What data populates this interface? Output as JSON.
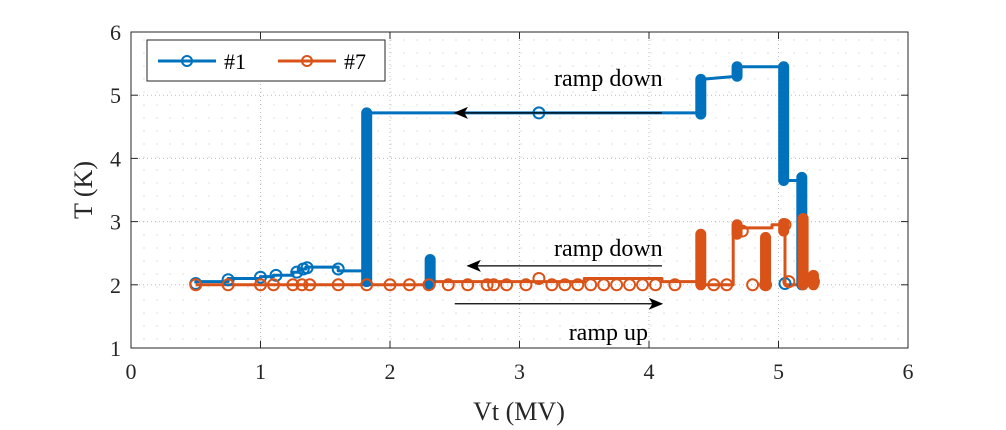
{
  "chart_data": {
    "type": "line",
    "title": "",
    "xlabel": "Vt (MV)",
    "ylabel": "T (K)",
    "xlim": [
      0,
      6
    ],
    "ylim": [
      1,
      6
    ],
    "xticks": [
      "0",
      "1",
      "2",
      "3",
      "4",
      "5",
      "6"
    ],
    "yticks": [
      "1",
      "2",
      "3",
      "4",
      "5",
      "6"
    ],
    "grid": "minor-dotted",
    "legend_position": "top-left",
    "series": [
      {
        "name": "#1",
        "color": "#0072BD",
        "x": [
          0.5,
          0.5,
          0.75,
          0.75,
          1.0,
          1.0,
          1.1,
          1.1,
          1.25,
          1.25,
          1.3,
          1.3,
          1.35,
          1.35,
          1.6,
          1.6,
          1.82,
          1.82,
          1.82,
          4.4,
          4.4,
          4.4,
          4.68,
          4.68,
          4.68,
          5.03,
          5.03,
          5.03,
          5.03,
          5.18,
          5.18,
          5.18
        ],
        "y": [
          2.02,
          2.05,
          2.05,
          2.1,
          2.1,
          2.13,
          2.13,
          2.15,
          2.15,
          2.2,
          2.2,
          2.25,
          2.25,
          2.28,
          2.28,
          2.22,
          2.22,
          4.7,
          4.72,
          4.72,
          5.2,
          5.25,
          5.3,
          5.42,
          5.45,
          5.45,
          5.4,
          5.1,
          3.65,
          3.65,
          3.7,
          2.05
        ],
        "markers": [
          {
            "x": 0.5,
            "y": 2.02
          },
          {
            "x": 0.75,
            "y": 2.08
          },
          {
            "x": 1.0,
            "y": 2.12
          },
          {
            "x": 1.12,
            "y": 2.15
          },
          {
            "x": 1.28,
            "y": 2.2
          },
          {
            "x": 1.33,
            "y": 2.25
          },
          {
            "x": 1.36,
            "y": 2.27
          },
          {
            "x": 1.6,
            "y": 2.25
          },
          {
            "x": 3.15,
            "y": 4.72
          },
          {
            "x": 5.05,
            "y": 2.02
          }
        ]
      },
      {
        "name": "#7",
        "color": "#D95319",
        "x": [
          0.5,
          2.3,
          2.3,
          3.5,
          3.5,
          4.1,
          4.1,
          4.4,
          4.4,
          4.4,
          4.65,
          4.65,
          4.95,
          4.95,
          5.05,
          5.05,
          5.18,
          5.18,
          5.18,
          5.25,
          5.27
        ],
        "y": [
          2.0,
          2.0,
          2.05,
          2.05,
          2.1,
          2.1,
          2.05,
          2.05,
          2.75,
          2.0,
          2.0,
          2.9,
          2.9,
          2.95,
          2.95,
          2.0,
          2.0,
          3.0,
          2.0,
          2.0,
          2.1
        ],
        "markers": [
          {
            "x": 0.5,
            "y": 2.0
          },
          {
            "x": 0.75,
            "y": 2.0
          },
          {
            "x": 1.0,
            "y": 2.0
          },
          {
            "x": 1.1,
            "y": 2.0
          },
          {
            "x": 1.25,
            "y": 2.0
          },
          {
            "x": 1.32,
            "y": 2.0
          },
          {
            "x": 1.38,
            "y": 2.0
          },
          {
            "x": 1.6,
            "y": 2.0
          },
          {
            "x": 1.82,
            "y": 2.0
          },
          {
            "x": 2.0,
            "y": 2.0
          },
          {
            "x": 2.15,
            "y": 2.0
          },
          {
            "x": 2.3,
            "y": 2.0
          },
          {
            "x": 2.45,
            "y": 2.0
          },
          {
            "x": 2.6,
            "y": 2.0
          },
          {
            "x": 2.75,
            "y": 2.0
          },
          {
            "x": 2.8,
            "y": 2.0
          },
          {
            "x": 2.9,
            "y": 2.0
          },
          {
            "x": 3.05,
            "y": 2.0
          },
          {
            "x": 3.15,
            "y": 2.1
          },
          {
            "x": 3.25,
            "y": 2.0
          },
          {
            "x": 3.35,
            "y": 2.0
          },
          {
            "x": 3.45,
            "y": 2.0
          },
          {
            "x": 3.55,
            "y": 2.0
          },
          {
            "x": 3.65,
            "y": 2.0
          },
          {
            "x": 3.75,
            "y": 2.0
          },
          {
            "x": 3.85,
            "y": 2.0
          },
          {
            "x": 3.95,
            "y": 2.0
          },
          {
            "x": 4.05,
            "y": 2.0
          },
          {
            "x": 4.2,
            "y": 2.0
          },
          {
            "x": 4.5,
            "y": 2.0
          },
          {
            "x": 4.6,
            "y": 2.0
          },
          {
            "x": 4.72,
            "y": 2.85
          },
          {
            "x": 4.8,
            "y": 2.0
          },
          {
            "x": 4.9,
            "y": 2.0
          },
          {
            "x": 5.05,
            "y": 2.95
          },
          {
            "x": 5.08,
            "y": 2.05
          },
          {
            "x": 5.27,
            "y": 2.05
          }
        ]
      }
    ],
    "thick_segments": [
      {
        "series": 0,
        "x": 1.82,
        "y0": 2.05,
        "y1": 4.72
      },
      {
        "series": 0,
        "x": 2.31,
        "y0": 2.0,
        "y1": 2.4
      },
      {
        "series": 0,
        "x": 4.4,
        "y0": 4.7,
        "y1": 5.25
      },
      {
        "series": 0,
        "x": 4.68,
        "y0": 5.3,
        "y1": 5.45
      },
      {
        "series": 0,
        "x": 5.04,
        "y0": 3.65,
        "y1": 5.45
      },
      {
        "series": 0,
        "x": 5.18,
        "y0": 2.0,
        "y1": 3.7
      },
      {
        "series": 1,
        "x": 4.4,
        "y0": 2.0,
        "y1": 2.8
      },
      {
        "series": 1,
        "x": 4.68,
        "y0": 2.8,
        "y1": 2.95
      },
      {
        "series": 1,
        "x": 4.9,
        "y0": 2.0,
        "y1": 2.75
      },
      {
        "series": 1,
        "x": 5.04,
        "y0": 2.85,
        "y1": 2.97
      },
      {
        "series": 1,
        "x": 5.19,
        "y0": 2.0,
        "y1": 3.05
      },
      {
        "series": 1,
        "x": 5.27,
        "y0": 2.0,
        "y1": 2.15
      }
    ],
    "annotations": [
      {
        "text": "ramp down",
        "arrow_from": [
          4.1,
          4.72
        ],
        "arrow_to": [
          2.5,
          4.72
        ],
        "text_at": [
          3.3,
          5.27
        ]
      },
      {
        "text": "ramp down",
        "arrow_from": [
          4.1,
          2.3
        ],
        "arrow_to": [
          2.6,
          2.3
        ],
        "text_at": [
          3.3,
          2.58
        ]
      },
      {
        "text": "ramp up",
        "arrow_from": [
          2.5,
          1.7
        ],
        "arrow_to": [
          4.1,
          1.7
        ],
        "text_at": [
          3.3,
          1.25
        ]
      }
    ]
  }
}
